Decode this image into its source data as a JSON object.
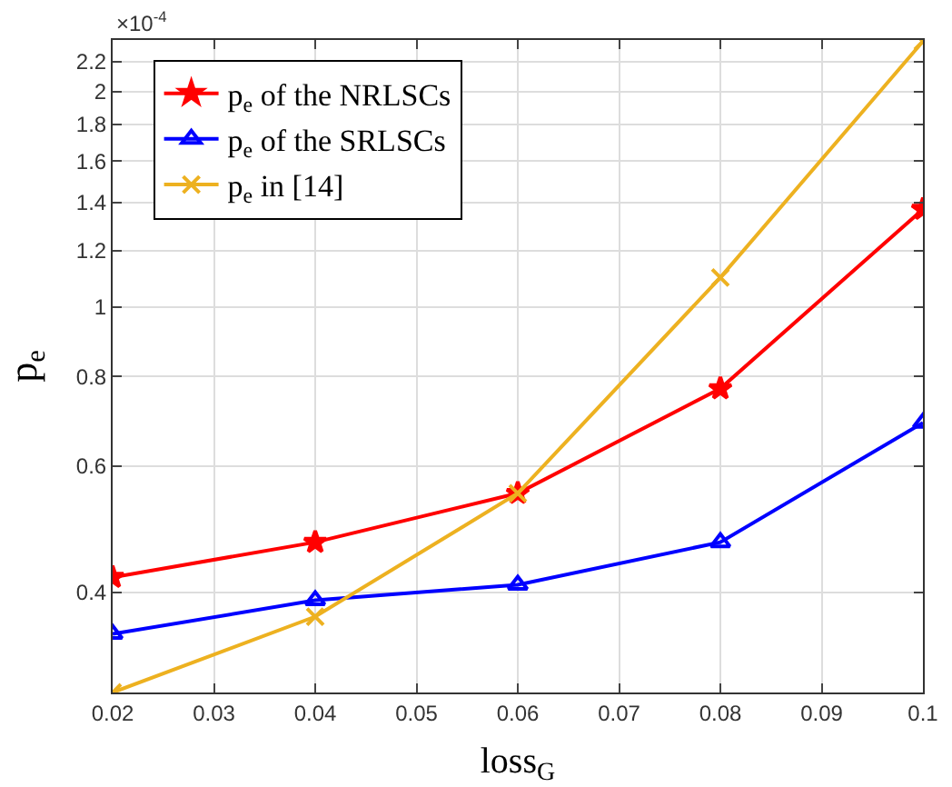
{
  "chart_data": {
    "type": "line",
    "xlabel": "loss$_{G}$",
    "ylabel": "p$_{e}$",
    "annotations": [
      "×10$^{-4}$"
    ],
    "x": [
      0.02,
      0.04,
      0.06,
      0.08,
      0.1
    ],
    "series": [
      {
        "name": "p$_{e}$ of the NRLSCs",
        "color": "#ff0000",
        "marker": "star",
        "values": [
          0.42,
          0.47,
          0.55,
          0.77,
          1.37
        ]
      },
      {
        "name": "p$_{e}$ of the SRLSCs",
        "color": "#0000ff",
        "marker": "triangle",
        "values": [
          0.35,
          0.39,
          0.41,
          0.47,
          0.69
        ]
      },
      {
        "name": "p$_{e}$ in [14]",
        "color": "#edb120",
        "marker": "cross",
        "values": [
          0.29,
          0.37,
          0.55,
          1.1,
          2.35
        ]
      }
    ],
    "log": "y",
    "xlim": [
      0.02,
      0.1
    ],
    "xticks": [
      0.02,
      0.03,
      0.04,
      0.05,
      0.06,
      0.07,
      0.08,
      0.09,
      0.1
    ],
    "ylim": [
      0.29,
      2.36
    ],
    "yticks": [
      0.4,
      0.6,
      0.8,
      1,
      1.2,
      1.4,
      1.6,
      1.8,
      2,
      2.2
    ],
    "grid": true,
    "legend": "top left",
    "line_style": "solid"
  }
}
